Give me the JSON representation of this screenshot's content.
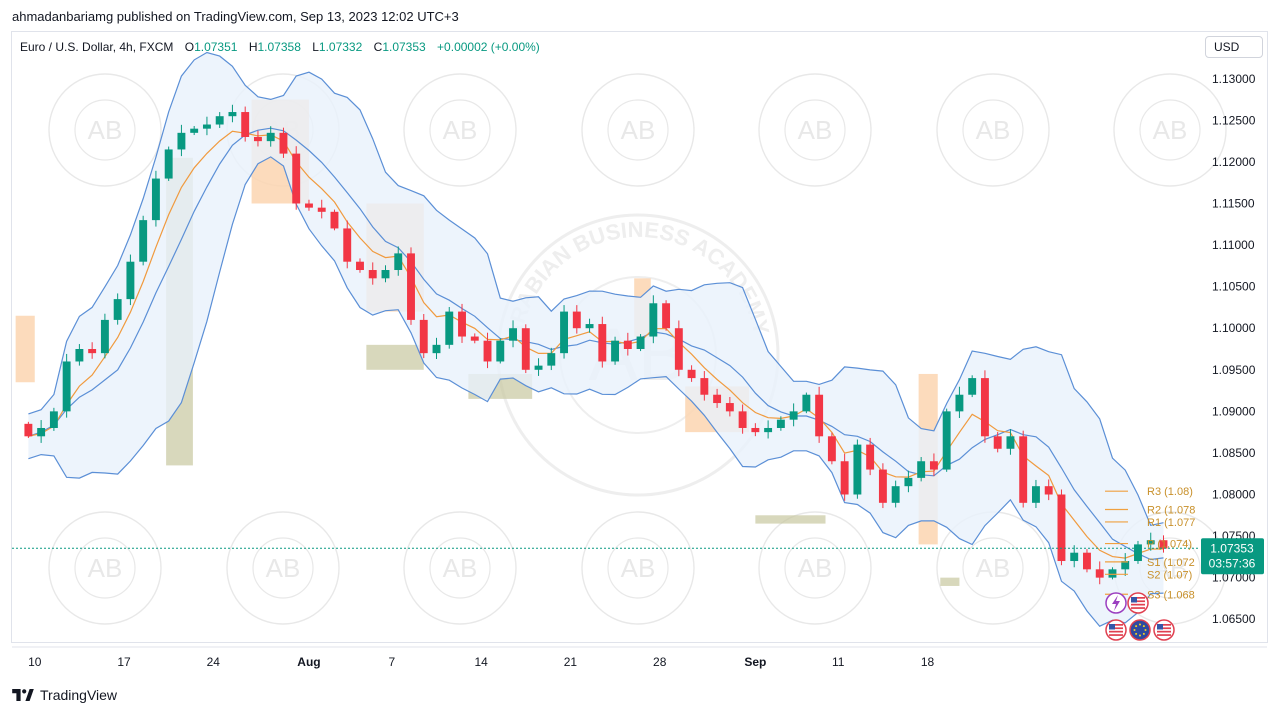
{
  "header": {
    "published_by": "ahmadanbariamg published on TradingView.com, Sep 13, 2023 12:02 UTC+3"
  },
  "legend": {
    "symbol": "Euro / U.S. Dollar, 4h, FXCM",
    "o_label": "O",
    "o_value": "1.07351",
    "h_label": "H",
    "h_value": "1.07358",
    "l_label": "L",
    "l_value": "1.07332",
    "c_label": "C",
    "c_value": "1.07353",
    "change": "+0.00002 (+0.00%)"
  },
  "currency_button": "USD",
  "footer": {
    "brand": "TradingView"
  },
  "price_tag": {
    "price": "1.07353",
    "countdown": "03:57:36"
  },
  "watermark": {
    "monogram": "AB",
    "text": "ARABIAN BUSINESS ACADEMY"
  },
  "colors": {
    "up": "#089981",
    "down": "#f23645",
    "band": "#5b8fd6",
    "band_fill": "#e8f1fb",
    "ema": "#f09a3e",
    "orange_box": "#fcd5b0",
    "olive_box": "#c8c8a0",
    "pivot_line": "#f0a040",
    "price_label": "#089981"
  },
  "chart_data": {
    "type": "candlestick",
    "symbol": "EURUSD",
    "timeframe": "4h",
    "ylim": [
      1.0625,
      1.1325
    ],
    "y_ticks": [
      "1.13000",
      "1.12500",
      "1.12000",
      "1.11500",
      "1.11000",
      "1.10500",
      "1.10000",
      "1.09500",
      "1.09000",
      "1.08500",
      "1.08000",
      "1.07500",
      "1.07000",
      "1.06500"
    ],
    "x_ticks": [
      "10",
      "17",
      "24",
      "Aug",
      "7",
      "14",
      "21",
      "28",
      "Sep",
      "11",
      "18"
    ],
    "x_tick_positions": [
      0.5,
      7.5,
      14.5,
      22,
      28.5,
      35.5,
      42.5,
      49.5,
      57,
      63.5,
      70.5
    ],
    "close_start": 1.0885,
    "closes": [
      1.087,
      1.088,
      1.09,
      1.096,
      1.0975,
      1.097,
      1.101,
      1.1035,
      1.108,
      1.113,
      1.118,
      1.1215,
      1.1235,
      1.124,
      1.1245,
      1.1255,
      1.126,
      1.123,
      1.1225,
      1.1235,
      1.121,
      1.115,
      1.1145,
      1.114,
      1.112,
      1.108,
      1.107,
      1.106,
      1.107,
      1.109,
      1.101,
      1.097,
      1.098,
      1.102,
      1.099,
      1.0985,
      1.096,
      1.0985,
      1.1,
      1.095,
      1.0955,
      1.097,
      1.102,
      1.1,
      1.1005,
      1.096,
      1.0985,
      1.0975,
      1.099,
      1.103,
      1.1,
      1.095,
      1.094,
      1.092,
      1.091,
      1.09,
      1.088,
      1.0875,
      1.088,
      1.089,
      1.09,
      1.092,
      1.087,
      1.084,
      1.08,
      1.086,
      1.083,
      1.079,
      1.081,
      1.082,
      1.084,
      1.083,
      1.09,
      1.092,
      1.094,
      1.087,
      1.0855,
      1.087,
      1.079,
      1.081,
      1.08,
      1.072,
      1.073,
      1.071,
      1.07,
      1.071,
      1.072,
      1.074,
      1.0745,
      1.0735
    ],
    "pivots": [
      {
        "label": "R3 (1.08)",
        "value": 1.0804
      },
      {
        "label": "R2 (1.078",
        "value": 1.0782
      },
      {
        "label": "R1 (1.077",
        "value": 1.0767
      },
      {
        "label": "P (1.074)",
        "value": 1.0741
      },
      {
        "label": "S1 (1.072",
        "value": 1.0719
      },
      {
        "label": "S2 (1.07)",
        "value": 1.0704
      },
      {
        "label": "S3 (1.068",
        "value": 1.068
      }
    ],
    "last_price": 1.07353,
    "zones": [
      {
        "kind": "orange",
        "x0": -0.5,
        "x1": 1,
        "y0": 1.0935,
        "y1": 1.1015
      },
      {
        "kind": "olive",
        "x0": 11.3,
        "x1": 13.4,
        "y0": 1.0835,
        "y1": 1.1205
      },
      {
        "kind": "orange",
        "x0": 18,
        "x1": 22.5,
        "y0": 1.115,
        "y1": 1.1275
      },
      {
        "kind": "orange",
        "x0": 27,
        "x1": 31.5,
        "y0": 1.102,
        "y1": 1.115
      },
      {
        "kind": "olive",
        "x0": 27,
        "x1": 31.5,
        "y0": 1.095,
        "y1": 1.098
      },
      {
        "kind": "olive",
        "x0": 35,
        "x1": 40,
        "y0": 1.0915,
        "y1": 1.0945
      },
      {
        "kind": "orange",
        "x0": 48,
        "x1": 49.3,
        "y0": 1.099,
        "y1": 1.106
      },
      {
        "kind": "orange",
        "x0": 52,
        "x1": 57,
        "y0": 1.0875,
        "y1": 1.093
      },
      {
        "kind": "olive",
        "x0": 57.5,
        "x1": 63,
        "y0": 1.0765,
        "y1": 1.0775
      },
      {
        "kind": "orange",
        "x0": 70.3,
        "x1": 71.8,
        "y0": 1.074,
        "y1": 1.0945
      },
      {
        "kind": "olive",
        "x0": 72,
        "x1": 73.5,
        "y0": 1.069,
        "y1": 1.07
      }
    ]
  }
}
